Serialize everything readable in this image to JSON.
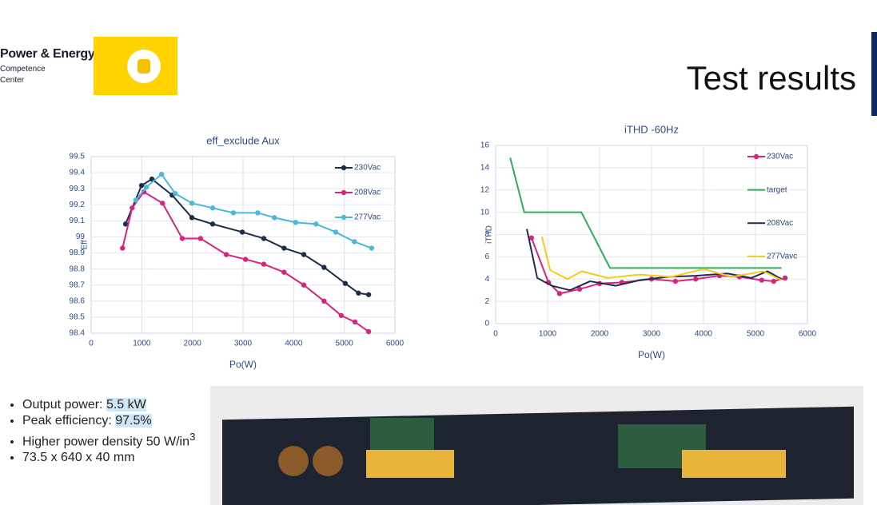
{
  "header": {
    "org": "Power & Energy",
    "org_sub": [
      "Competence",
      "Center"
    ],
    "title": "Test results"
  },
  "chart_data": [
    {
      "type": "line",
      "title": "eff_exclude Aux",
      "xlabel": "Po(W)",
      "ylabel": "Eff",
      "xlim": [
        0,
        6000
      ],
      "xticks": [
        0,
        1000,
        2000,
        3000,
        4000,
        5000,
        6000
      ],
      "ylim": [
        98.4,
        99.5
      ],
      "yticks": [
        98.4,
        98.5,
        98.6,
        98.7,
        98.8,
        98.9,
        99,
        99.1,
        99.2,
        99.3,
        99.4,
        99.5
      ],
      "grid": true,
      "legend": "upper right",
      "series": [
        {
          "name": "230Vac",
          "color": "#1f2d4d",
          "markers": true,
          "x": [
            680,
            995,
            1200,
            1600,
            1990,
            2400,
            2985,
            3410,
            3810,
            4200,
            4600,
            5020,
            5280,
            5480
          ],
          "values": [
            99.08,
            99.32,
            99.36,
            99.26,
            99.12,
            99.08,
            99.03,
            98.99,
            98.93,
            98.89,
            98.81,
            98.71,
            98.65,
            98.64
          ]
        },
        {
          "name": "208Vac",
          "color": "#d6247f",
          "markers": true,
          "x": [
            620,
            810,
            1040,
            1410,
            1800,
            2160,
            2670,
            3050,
            3410,
            3810,
            4200,
            4600,
            4940,
            5210,
            5480
          ],
          "values": [
            98.93,
            99.18,
            99.28,
            99.21,
            98.99,
            98.99,
            98.89,
            98.86,
            98.83,
            98.78,
            98.7,
            98.6,
            98.51,
            98.47,
            98.41
          ]
        },
        {
          "name": "277Vac",
          "color": "#4bb8d8",
          "markers": true,
          "x": [
            885,
            1090,
            1390,
            1660,
            1990,
            2400,
            2810,
            3290,
            3620,
            4040,
            4440,
            4830,
            5200,
            5540
          ],
          "values": [
            99.23,
            99.31,
            99.39,
            99.27,
            99.21,
            99.18,
            99.15,
            99.15,
            99.12,
            99.09,
            99.08,
            99.03,
            98.97,
            98.93
          ]
        }
      ]
    },
    {
      "type": "line",
      "title": "iTHD -60Hz",
      "xlabel": "Po(W)",
      "ylabel": "iTHD",
      "xlim": [
        0,
        6000
      ],
      "xticks": [
        0,
        1000,
        2000,
        3000,
        4000,
        5000,
        6000
      ],
      "ylim": [
        0,
        16
      ],
      "yticks": [
        0,
        2,
        4,
        6,
        8,
        10,
        12,
        14,
        16
      ],
      "grid": true,
      "legend": "upper right",
      "series": [
        {
          "name": "230Vac",
          "color": "#d6247f",
          "markers": true,
          "x": [
            690,
            1015,
            1230,
            1615,
            2000,
            2430,
            3000,
            3460,
            3850,
            4310,
            4690,
            5120,
            5350,
            5570
          ],
          "values": [
            7.7,
            3.7,
            2.7,
            3.1,
            3.6,
            3.7,
            4.0,
            3.8,
            4.0,
            4.3,
            4.2,
            3.9,
            3.8,
            4.1
          ]
        },
        {
          "name": "target",
          "color": "#2eae5c",
          "markers": false,
          "x": [
            280,
            550,
            1650,
            2200,
            5500
          ],
          "values": [
            14.9,
            10,
            10,
            5,
            5
          ]
        },
        {
          "name": "208Vac",
          "color": "#1f2d4d",
          "markers": false,
          "x": [
            600,
            800,
            1080,
            1430,
            1815,
            2310,
            2770,
            3310,
            3850,
            4460,
            4920,
            5230,
            5500
          ],
          "values": [
            8.5,
            4.1,
            3.4,
            3.0,
            3.8,
            3.4,
            3.9,
            4.2,
            4.3,
            4.5,
            4.1,
            4.7,
            4.0
          ]
        },
        {
          "name": "277Vavc",
          "color": "#f2cc1d",
          "markers": false,
          "x": [
            890,
            1050,
            1380,
            1660,
            2150,
            2770,
            3380,
            4000,
            4540,
            5150,
            5500
          ],
          "values": [
            7.8,
            4.8,
            4.0,
            4.7,
            4.1,
            4.4,
            4.2,
            4.9,
            4.2,
            4.7,
            3.9
          ]
        }
      ]
    }
  ],
  "bullets": [
    {
      "label": "Output power: ",
      "highlight": "5.5 kW"
    },
    {
      "label": "Peak efficiency: ",
      "highlight": "97.5%"
    },
    {
      "label": "Higher power density 50 W/in",
      "sup": "3"
    },
    {
      "label": "73.5 x 640 x 40 mm"
    }
  ]
}
